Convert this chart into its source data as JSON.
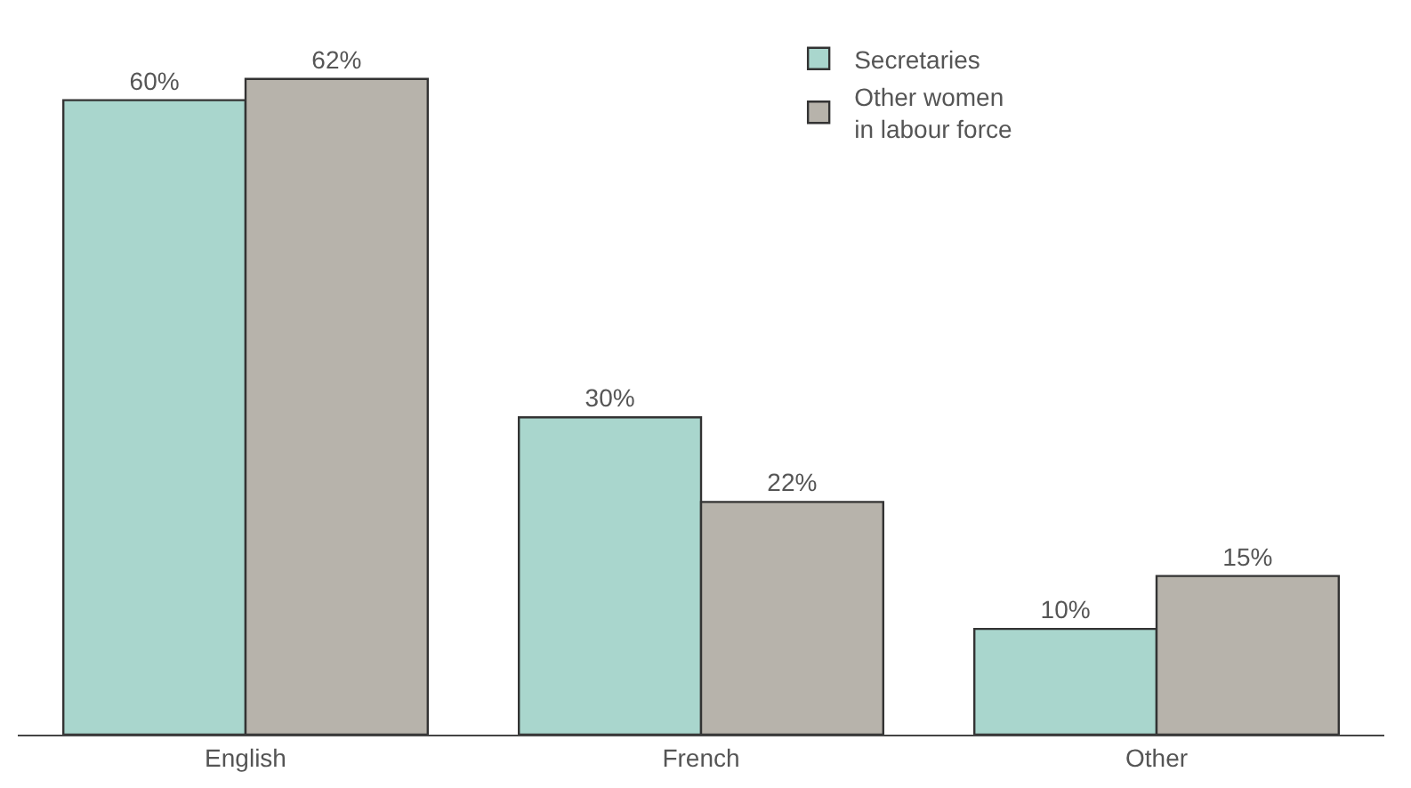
{
  "chart_data": {
    "type": "bar",
    "categories": [
      "English",
      "French",
      "Other"
    ],
    "series": [
      {
        "name": "Secretaries",
        "color": "#a9d6cd",
        "values": [
          60,
          30,
          10
        ],
        "value_labels": [
          "60%",
          "30%",
          "10%"
        ]
      },
      {
        "name": "Other women\nin labour force",
        "color": "#b7b3ab",
        "values": [
          62,
          22,
          15
        ],
        "value_labels": [
          "62%",
          "22%",
          "15%"
        ]
      }
    ],
    "legend": "top right",
    "tick_labels": "x"
  }
}
